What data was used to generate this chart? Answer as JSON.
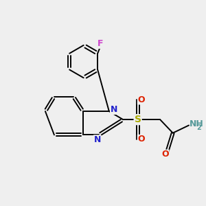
{
  "background_color": "#efefef",
  "bond_color": "#000000",
  "figsize": [
    3.0,
    3.0
  ],
  "dpi": 100,
  "lw": 1.4,
  "atom_colors": {
    "F": "#cc44cc",
    "N": "#2222cc",
    "S": "#aaaa00",
    "O": "#dd2200",
    "NH2_N": "#559999",
    "NH2_H": "#559999"
  }
}
